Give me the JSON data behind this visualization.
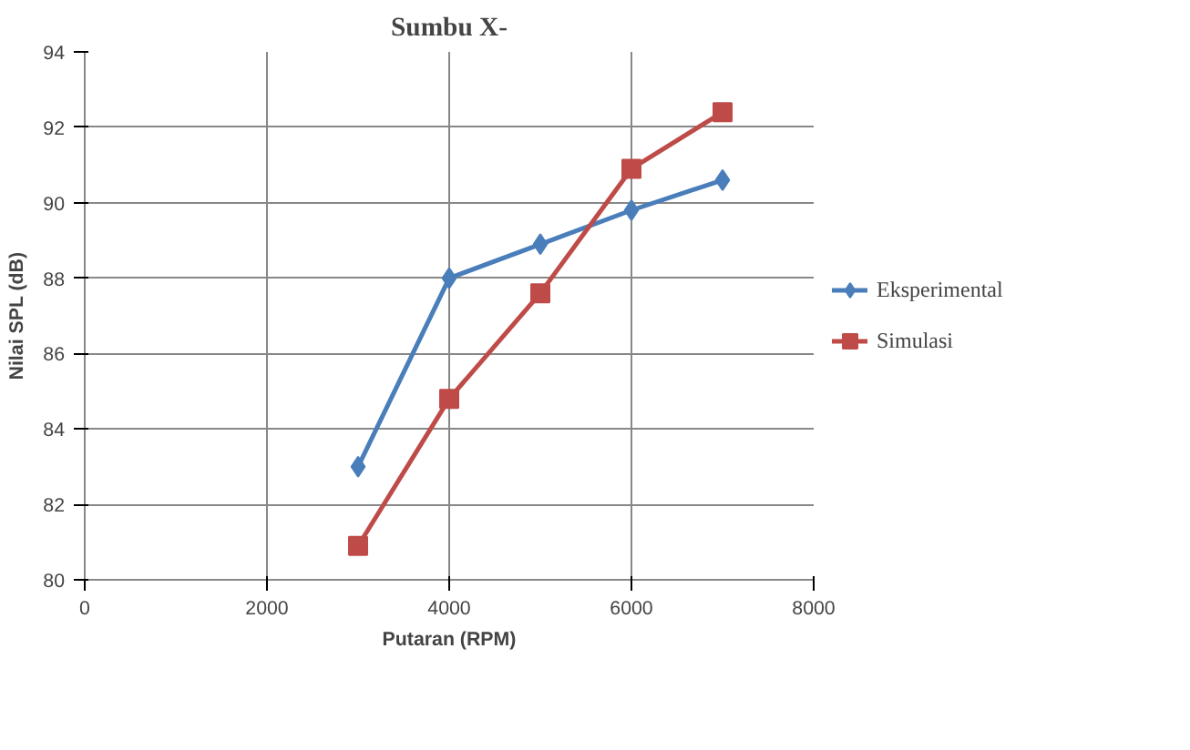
{
  "chart_data": {
    "type": "line",
    "title": "Sumbu X-",
    "xlabel": "Putaran (RPM)",
    "ylabel": "Nilai SPL (dB)",
    "x": [
      3000,
      4000,
      5000,
      6000,
      7000
    ],
    "series": [
      {
        "name": "Eksperimental",
        "color": "#4a7ebb",
        "marker": "diamond",
        "values": [
          83.0,
          88.0,
          88.9,
          89.8,
          90.6
        ]
      },
      {
        "name": "Simulasi",
        "color": "#be4b48",
        "marker": "square",
        "values": [
          80.9,
          84.8,
          87.6,
          90.9,
          92.4
        ]
      }
    ],
    "xlim": [
      0,
      8000
    ],
    "xticks": [
      0,
      2000,
      4000,
      6000,
      8000
    ],
    "ylim": [
      80,
      94
    ],
    "yticks": [
      80,
      82,
      84,
      86,
      88,
      90,
      92,
      94
    ],
    "grid": true,
    "legend": "right",
    "line_style": "solid"
  }
}
